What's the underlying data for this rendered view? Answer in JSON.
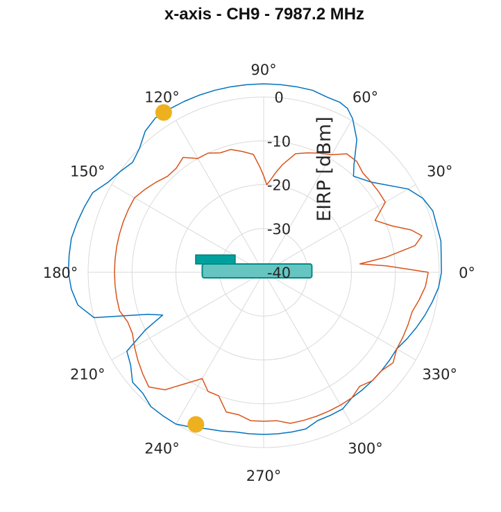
{
  "chart_data": {
    "type": "polar-line",
    "title": "x-axis - CH9 - 7987.2 MHz",
    "rlabel": "EIRP [dBm]",
    "rlim": [
      -40,
      0
    ],
    "r_ticks": [
      "0",
      "-10",
      "-20",
      "-30",
      "-40"
    ],
    "r_tick_values": [
      0,
      -10,
      -20,
      -30,
      -40
    ],
    "theta_ticks": [
      "0°",
      "30°",
      "60°",
      "90°",
      "120°",
      "150°",
      "180°",
      "210°",
      "240°",
      "270°",
      "300°",
      "330°"
    ],
    "theta_tick_values": [
      0,
      30,
      60,
      90,
      120,
      150,
      180,
      210,
      240,
      270,
      300,
      330
    ],
    "grid": true,
    "series": [
      {
        "color": "#0072BD",
        "theta": [
          0,
          10,
          20,
          25,
          30,
          40,
          47,
          50,
          55,
          60,
          63,
          66,
          70,
          75,
          80,
          85,
          90,
          95,
          100,
          105,
          110,
          115,
          120,
          125,
          130,
          135,
          140,
          145,
          150,
          155,
          160,
          165,
          170,
          175,
          180,
          185,
          190,
          195,
          200,
          203,
          206,
          210,
          215,
          220,
          225,
          230,
          235,
          240,
          245,
          250,
          255,
          260,
          265,
          270,
          275,
          280,
          285,
          290,
          295,
          300,
          305,
          310,
          315,
          320,
          325,
          330,
          335,
          340,
          345,
          350,
          355,
          360
        ],
        "r": [
          0.5,
          1,
          1,
          0,
          -2,
          -8,
          -10,
          -8,
          -3,
          0.5,
          2,
          2.5,
          2.5,
          3,
          3,
          3,
          3,
          3,
          3,
          3,
          3,
          3,
          3,
          3,
          2,
          0,
          -1,
          0,
          1,
          3,
          3.5,
          4,
          4.5,
          4.5,
          4.5,
          4,
          3,
          0,
          -12,
          -15,
          -10,
          -4,
          -3,
          -1,
          -1,
          0,
          0,
          0,
          -1,
          -2,
          -2.5,
          -3,
          -3,
          -3,
          -3,
          -3,
          -3,
          -4,
          -4,
          -4,
          -5,
          -5,
          -5,
          -5,
          -5,
          -5,
          -4,
          -3,
          -2,
          -1,
          0,
          0.5
        ]
      },
      {
        "color": "#D95319",
        "theta": [
          0,
          3,
          5,
          7,
          10,
          13,
          16,
          20,
          25,
          30,
          35,
          40,
          45,
          50,
          55,
          60,
          65,
          70,
          75,
          80,
          83,
          86,
          88,
          90,
          92,
          95,
          100,
          105,
          110,
          115,
          120,
          125,
          130,
          135,
          140,
          145,
          150,
          155,
          160,
          165,
          170,
          175,
          180,
          185,
          190,
          195,
          200,
          205,
          210,
          215,
          220,
          225,
          230,
          235,
          240,
          245,
          250,
          255,
          260,
          265,
          270,
          275,
          280,
          285,
          290,
          295,
          300,
          305,
          310,
          315,
          320,
          325,
          330,
          335,
          340,
          345,
          350,
          355,
          360
        ],
        "r": [
          -2.5,
          -12,
          -18,
          -12,
          -5,
          -3,
          -5,
          -9,
          -12,
          -8,
          -8,
          -8,
          -8,
          -7,
          -7,
          -9,
          -10,
          -11,
          -12,
          -15,
          -17,
          -19,
          -20,
          -18,
          -16,
          -13,
          -12,
          -11,
          -11,
          -10,
          -10,
          -8,
          -9,
          -9,
          -8,
          -7,
          -6,
          -6,
          -6,
          -6,
          -6,
          -6,
          -6,
          -6,
          -6,
          -6,
          -7,
          -7,
          -6,
          -5,
          -4,
          -3,
          -5,
          -9,
          -12,
          -10,
          -10,
          -7,
          -7,
          -6,
          -6,
          -6,
          -5,
          -5,
          -5,
          -5,
          -5,
          -5,
          -6,
          -5,
          -5,
          -4,
          -5,
          -5,
          -5,
          -5,
          -4,
          -3,
          -2.5
        ]
      }
    ],
    "markers": [
      {
        "theta": 122,
        "r": 3,
        "color": "#EDB120"
      },
      {
        "theta": 246,
        "r": -2,
        "color": "#EDB120"
      }
    ],
    "bars": [
      {
        "color": "#00A19C",
        "from_angle": 180,
        "to_angle": 180,
        "r_inner": -33.5,
        "r_outer": -24.5,
        "offset_side": "upper"
      },
      {
        "color": "#66C5C1",
        "from_angle": 0,
        "to_angle": 180,
        "r_inner": -40,
        "r_outer": -26,
        "offset_side": "lower"
      }
    ]
  }
}
